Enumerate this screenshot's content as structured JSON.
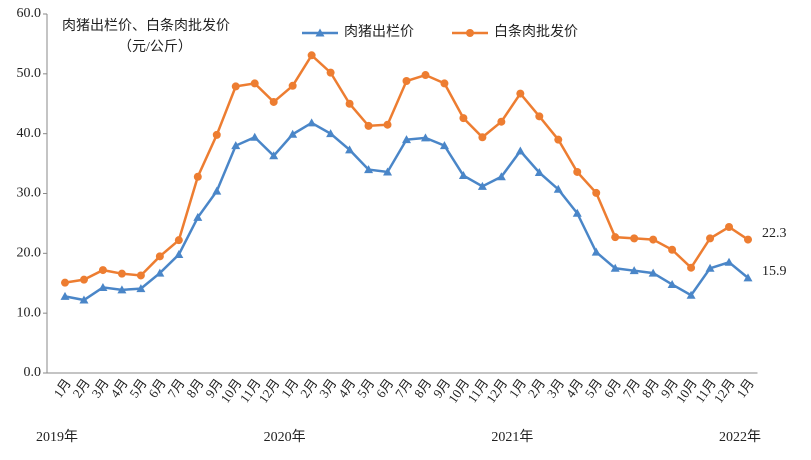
{
  "chart_data": {
    "type": "line",
    "title": "肉猪出栏价、白条肉批发价",
    "subtitle": "（元/公斤）",
    "categories": [
      "1月",
      "2月",
      "3月",
      "4月",
      "5月",
      "6月",
      "7月",
      "8月",
      "9月",
      "10月",
      "11月",
      "12月",
      "1月",
      "2月",
      "3月",
      "4月",
      "5月",
      "6月",
      "7月",
      "8月",
      "9月",
      "10月",
      "11月",
      "12月",
      "1月",
      "2月",
      "3月",
      "4月",
      "5月",
      "6月",
      "7月",
      "8月",
      "9月",
      "10月",
      "11月",
      "12月",
      "1月"
    ],
    "year_labels": [
      "2019年",
      "2020年",
      "2021年",
      "2022年"
    ],
    "series": [
      {
        "name": "肉猪出栏价",
        "color": "#4a86c8",
        "marker": "triangle",
        "values": [
          12.8,
          12.2,
          14.3,
          13.9,
          14.1,
          16.7,
          19.8,
          26.0,
          30.4,
          38.0,
          39.4,
          36.3,
          39.9,
          41.8,
          40.0,
          37.3,
          34.0,
          33.6,
          39.0,
          39.3,
          38.0,
          33.0,
          31.2,
          32.8,
          37.1,
          33.5,
          30.7,
          26.7,
          20.2,
          17.5,
          17.1,
          16.7,
          14.8,
          13.0,
          17.5,
          18.5,
          15.9
        ]
      },
      {
        "name": "白条肉批发价",
        "color": "#ed7d31",
        "marker": "circle",
        "values": [
          15.1,
          15.6,
          17.2,
          16.6,
          16.3,
          19.5,
          22.2,
          32.8,
          39.8,
          47.9,
          48.4,
          45.3,
          48.0,
          53.1,
          50.2,
          45.0,
          41.3,
          41.5,
          48.8,
          49.8,
          48.4,
          42.6,
          39.4,
          42.0,
          46.7,
          42.9,
          39.0,
          33.6,
          30.1,
          22.7,
          22.5,
          22.3,
          20.6,
          17.6,
          22.5,
          24.4,
          22.3
        ]
      }
    ],
    "ylim": [
      0,
      60
    ],
    "yticks": [
      {
        "value": 0,
        "label": "0.0"
      },
      {
        "value": 10,
        "label": "10.0"
      },
      {
        "value": 20,
        "label": "20.0"
      },
      {
        "value": 30,
        "label": "30.0"
      },
      {
        "value": 40,
        "label": "40.0"
      },
      {
        "value": 50,
        "label": "50.0"
      },
      {
        "value": 60,
        "label": "60.0"
      }
    ],
    "grid": false
  }
}
